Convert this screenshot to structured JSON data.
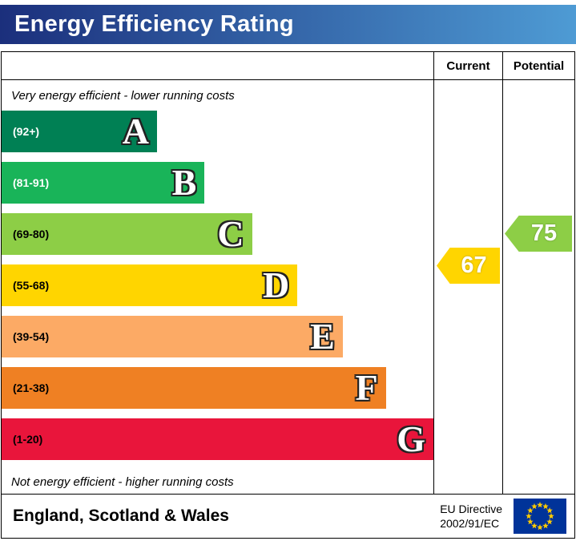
{
  "title_bar": {
    "title": "Energy Efficiency Rating",
    "gradient_left": "#1b2f7c",
    "gradient_right": "#4e9bd4",
    "text_color": "#ffffff"
  },
  "table_header": {
    "current": "Current",
    "potential": "Potential"
  },
  "chart_data": {
    "type": "bar",
    "title": "Energy Efficiency Rating",
    "top_annotation": "Very energy efficient - lower running costs",
    "bottom_annotation": "Not energy efficient - higher running costs",
    "bands": [
      {
        "letter": "A",
        "range_label": "(92+)",
        "range_min": 92,
        "range_max": 100,
        "color": "#008054",
        "width_pct": 36,
        "label_color": "#ffffff"
      },
      {
        "letter": "B",
        "range_label": "(81-91)",
        "range_min": 81,
        "range_max": 91,
        "color": "#19b459",
        "width_pct": 47,
        "label_color": "#ffffff"
      },
      {
        "letter": "C",
        "range_label": "(69-80)",
        "range_min": 69,
        "range_max": 80,
        "color": "#8dce46",
        "width_pct": 58,
        "label_color": "#000000"
      },
      {
        "letter": "D",
        "range_label": "(55-68)",
        "range_min": 55,
        "range_max": 68,
        "color": "#ffd500",
        "width_pct": 68.5,
        "label_color": "#000000"
      },
      {
        "letter": "E",
        "range_label": "(39-54)",
        "range_min": 39,
        "range_max": 54,
        "color": "#fcaa65",
        "width_pct": 79,
        "label_color": "#000000"
      },
      {
        "letter": "F",
        "range_label": "(21-38)",
        "range_min": 21,
        "range_max": 38,
        "color": "#ef8023",
        "width_pct": 89,
        "label_color": "#000000"
      },
      {
        "letter": "G",
        "range_label": "(1-20)",
        "range_min": 1,
        "range_max": 20,
        "color": "#e9153b",
        "width_pct": 100,
        "label_color": "#000000"
      }
    ],
    "current": {
      "value": 67,
      "band": "D",
      "color": "#ffd500"
    },
    "potential": {
      "value": 75,
      "band": "C",
      "color": "#8dce46"
    }
  },
  "footer": {
    "region_label": "England, Scotland & Wales",
    "directive_line1": "EU Directive",
    "directive_line2": "2002/91/EC",
    "flag": {
      "background": "#003399",
      "star_color": "#ffcc00"
    }
  }
}
